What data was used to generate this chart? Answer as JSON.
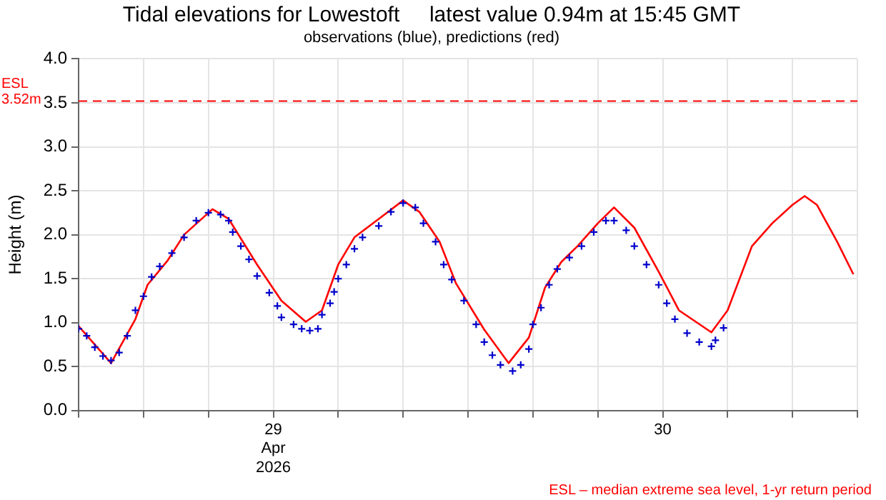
{
  "chart_data": {
    "type": "line",
    "title": "Tidal elevations for Lowestoft     latest value 0.94m at 15:45 GMT",
    "subtitle": "observations (blue), predictions (red)",
    "ylabel": "Height (m)",
    "xlim": [
      "2026-04-29T00:00",
      "2026-05-01T00:00"
    ],
    "xticks": [
      {
        "value": "2026-04-29T00:00",
        "label": null
      },
      {
        "value": "2026-04-29T04:00",
        "label": null
      },
      {
        "value": "2026-04-29T08:00",
        "label": null
      },
      {
        "value": "2026-04-29T12:00",
        "label": "29\nApr\n2026"
      },
      {
        "value": "2026-04-29T16:00",
        "label": null
      },
      {
        "value": "2026-04-29T20:00",
        "label": null
      },
      {
        "value": "2026-04-30T00:00",
        "label": null
      },
      {
        "value": "2026-04-30T04:00",
        "label": null
      },
      {
        "value": "2026-04-30T08:00",
        "label": null
      },
      {
        "value": "2026-04-30T12:00",
        "label": "30"
      },
      {
        "value": "2026-04-30T16:00",
        "label": null
      },
      {
        "value": "2026-04-30T20:00",
        "label": null
      },
      {
        "value": "2026-05-01T00:00",
        "label": null
      }
    ],
    "ylim": [
      0,
      4
    ],
    "yticks": [
      {
        "value": 0,
        "label": "0.0"
      },
      0.5,
      {
        "value": 1,
        "label": "1.0"
      },
      1.5,
      {
        "value": 2,
        "label": "2.0"
      },
      2.5,
      {
        "value": 3,
        "label": "3.0"
      },
      3.5,
      {
        "value": 4,
        "label": "4.0"
      }
    ],
    "grid": true,
    "legend": false,
    "ref_lines": [
      {
        "axis": "y",
        "value": 3.52,
        "label": "ESL\n3.52m",
        "color": "#ff0000",
        "line_style": "dashed"
      }
    ],
    "annotations": [
      "ESL – median extreme sea level, 1-yr return period"
    ],
    "series": [
      {
        "type": "line",
        "color": "#ff0000",
        "marker": "none",
        "line_style": "solid",
        "x": [
          "2026-04-29T00:00",
          "2026-04-29T02:00",
          "2026-04-29T03:30",
          "2026-04-29T04:15",
          "2026-04-29T05:30",
          "2026-04-29T06:30",
          "2026-04-29T08:15",
          "2026-04-29T09:15",
          "2026-04-29T11:00",
          "2026-04-29T12:30",
          "2026-04-29T14:00",
          "2026-04-29T15:00",
          "2026-04-29T16:00",
          "2026-04-29T17:00",
          "2026-04-29T18:30",
          "2026-04-29T20:00",
          "2026-04-29T21:00",
          "2026-04-29T22:15",
          "2026-04-29T23:15",
          "2026-04-30T01:00",
          "2026-04-30T02:30",
          "2026-04-30T03:45",
          "2026-04-30T04:45",
          "2026-04-30T05:45",
          "2026-04-30T06:45",
          "2026-04-30T08:00",
          "2026-04-30T09:00",
          "2026-04-30T10:15",
          "2026-04-30T11:45",
          "2026-04-30T13:00",
          "2026-04-30T15:00",
          "2026-04-30T16:00",
          "2026-04-30T17:30",
          "2026-04-30T18:45",
          "2026-04-30T20:00",
          "2026-04-30T20:45",
          "2026-04-30T21:30",
          "2026-04-30T22:45",
          "2026-04-30T23:45"
        ],
        "values": [
          0.96,
          0.54,
          1.04,
          1.43,
          1.71,
          2.0,
          2.29,
          2.18,
          1.66,
          1.25,
          1.01,
          1.14,
          1.66,
          1.97,
          2.18,
          2.39,
          2.26,
          1.92,
          1.45,
          0.92,
          0.54,
          0.83,
          1.4,
          1.69,
          1.87,
          2.13,
          2.31,
          2.08,
          1.58,
          1.14,
          0.89,
          1.14,
          1.87,
          2.13,
          2.34,
          2.44,
          2.34,
          1.92,
          1.55
        ]
      },
      {
        "type": "scatter",
        "color": "#0000cc",
        "marker": "cross",
        "x": [
          "2026-04-29T00:00",
          "2026-04-29T00:30",
          "2026-04-29T01:00",
          "2026-04-29T01:30",
          "2026-04-29T02:00",
          "2026-04-29T02:30",
          "2026-04-29T03:00",
          "2026-04-29T03:30",
          "2026-04-29T04:00",
          "2026-04-29T04:30",
          "2026-04-29T05:00",
          "2026-04-29T05:45",
          "2026-04-29T06:30",
          "2026-04-29T07:15",
          "2026-04-29T08:00",
          "2026-04-29T08:45",
          "2026-04-29T09:15",
          "2026-04-29T09:30",
          "2026-04-29T10:00",
          "2026-04-29T10:30",
          "2026-04-29T11:00",
          "2026-04-29T11:45",
          "2026-04-29T12:15",
          "2026-04-29T12:30",
          "2026-04-29T13:15",
          "2026-04-29T13:45",
          "2026-04-29T14:15",
          "2026-04-29T14:45",
          "2026-04-29T15:00",
          "2026-04-29T15:30",
          "2026-04-29T15:45",
          "2026-04-29T16:00",
          "2026-04-29T16:30",
          "2026-04-29T17:00",
          "2026-04-29T17:30",
          "2026-04-29T18:30",
          "2026-04-29T19:15",
          "2026-04-29T20:00",
          "2026-04-29T20:45",
          "2026-04-29T21:15",
          "2026-04-29T22:00",
          "2026-04-29T22:30",
          "2026-04-29T23:00",
          "2026-04-29T23:45",
          "2026-04-30T00:30",
          "2026-04-30T01:00",
          "2026-04-30T01:30",
          "2026-04-30T02:00",
          "2026-04-30T02:45",
          "2026-04-30T03:15",
          "2026-04-30T03:45",
          "2026-04-30T04:00",
          "2026-04-30T04:30",
          "2026-04-30T05:00",
          "2026-04-30T05:30",
          "2026-04-30T06:15",
          "2026-04-30T07:00",
          "2026-04-30T07:45",
          "2026-04-30T08:30",
          "2026-04-30T09:00",
          "2026-04-30T09:45",
          "2026-04-30T10:15",
          "2026-04-30T11:00",
          "2026-04-30T11:45",
          "2026-04-30T12:15",
          "2026-04-30T12:45",
          "2026-04-30T13:30",
          "2026-04-30T14:15",
          "2026-04-30T15:00",
          "2026-04-30T15:15",
          "2026-04-30T15:45"
        ],
        "values": [
          0.93,
          0.85,
          0.72,
          0.62,
          0.57,
          0.66,
          0.85,
          1.14,
          1.3,
          1.52,
          1.64,
          1.79,
          1.97,
          2.16,
          2.25,
          2.23,
          2.16,
          2.03,
          1.87,
          1.72,
          1.53,
          1.34,
          1.19,
          1.06,
          0.98,
          0.93,
          0.91,
          0.93,
          1.09,
          1.22,
          1.35,
          1.5,
          1.66,
          1.84,
          1.97,
          2.1,
          2.26,
          2.36,
          2.31,
          2.13,
          1.92,
          1.66,
          1.49,
          1.25,
          0.98,
          0.78,
          0.63,
          0.52,
          0.45,
          0.52,
          0.7,
          0.98,
          1.17,
          1.43,
          1.61,
          1.74,
          1.87,
          2.03,
          2.16,
          2.16,
          2.05,
          1.87,
          1.66,
          1.43,
          1.22,
          1.04,
          0.88,
          0.78,
          0.73,
          0.8,
          0.94
        ]
      }
    ]
  }
}
